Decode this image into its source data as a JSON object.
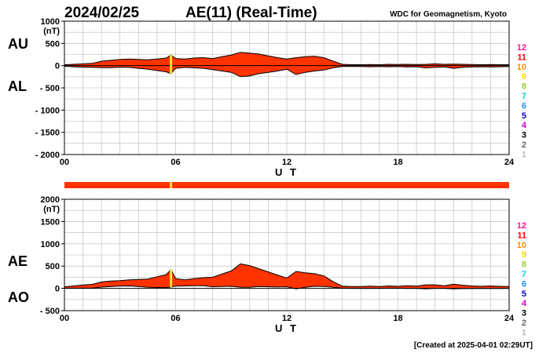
{
  "header": {
    "date": "2024/02/25",
    "title": "AE(11) (Real-Time)",
    "source": "WDC for Geomagnetism, Kyoto"
  },
  "footer": {
    "created": "[Created at 2025-04-01 02:29UT]"
  },
  "colors": {
    "fill": "#ff3300",
    "highlight": "#f2e23a",
    "band": "#ff3300",
    "grid": "#b8b8b8"
  },
  "color_scale": [
    {
      "label": "12",
      "color": "#ff1493"
    },
    {
      "label": "11",
      "color": "#ff0000"
    },
    {
      "label": "10",
      "color": "#ff8c00"
    },
    {
      "label": "9",
      "color": "#ffd700"
    },
    {
      "label": "8",
      "color": "#9acd32"
    },
    {
      "label": "7",
      "color": "#00ced1"
    },
    {
      "label": "6",
      "color": "#1e90ff"
    },
    {
      "label": "5",
      "color": "#0000cd"
    },
    {
      "label": "4",
      "color": "#cc00cc"
    },
    {
      "label": "3",
      "color": "#000000"
    },
    {
      "label": "2",
      "color": "#666666"
    },
    {
      "label": "1",
      "color": "#bbbbbb"
    }
  ],
  "chart_data": [
    {
      "type": "area",
      "panel": "top",
      "series_labels": [
        "AU",
        "AL"
      ],
      "unit": "(nT)",
      "ylim": [
        -2000,
        1000
      ],
      "yticks": [
        1000,
        500,
        0,
        -500,
        -1000,
        -1500,
        -2000
      ],
      "ytick_labels": [
        "1000",
        "500",
        "0",
        "- 500",
        "- 1000",
        "- 1500",
        "- 2000"
      ],
      "xlim": [
        0,
        24
      ],
      "xticks": [
        "00",
        "06",
        "12",
        "18",
        "24"
      ],
      "xlabel": "U T",
      "grid": true,
      "highlight_hour": 5.75,
      "x": [
        0,
        0.5,
        1,
        1.5,
        2,
        2.5,
        3,
        3.5,
        4,
        4.5,
        5,
        5.5,
        5.75,
        6,
        6.5,
        7,
        7.5,
        8,
        8.5,
        9,
        9.5,
        10,
        10.5,
        11,
        11.5,
        12,
        12.5,
        13,
        13.5,
        14,
        14.5,
        15,
        15.5,
        16,
        16.5,
        17,
        17.5,
        18,
        18.5,
        19,
        19.5,
        20,
        20.5,
        21,
        21.5,
        22,
        22.5,
        23,
        23.5,
        24
      ],
      "series": [
        {
          "name": "AU",
          "values": [
            20,
            30,
            40,
            50,
            100,
            120,
            140,
            150,
            140,
            130,
            150,
            170,
            240,
            160,
            150,
            170,
            180,
            160,
            200,
            240,
            300,
            280,
            260,
            220,
            180,
            150,
            180,
            200,
            210,
            180,
            100,
            30,
            20,
            20,
            25,
            20,
            30,
            25,
            30,
            25,
            30,
            40,
            30,
            35,
            30,
            25,
            20,
            25,
            20,
            20
          ]
        },
        {
          "name": "AL",
          "values": [
            -15,
            -25,
            -35,
            -40,
            -45,
            -45,
            -35,
            -40,
            -60,
            -80,
            -110,
            -140,
            -180,
            -60,
            -40,
            -50,
            -60,
            -90,
            -120,
            -150,
            -250,
            -230,
            -180,
            -150,
            -120,
            -80,
            -200,
            -150,
            -120,
            -100,
            -50,
            -20,
            -20,
            -20,
            -25,
            -20,
            -25,
            -20,
            -30,
            -25,
            -50,
            -40,
            -30,
            -60,
            -40,
            -30,
            -25,
            -30,
            -25,
            -20
          ]
        }
      ]
    },
    {
      "type": "area",
      "panel": "bottom",
      "series_labels": [
        "AE",
        "AO"
      ],
      "unit": "(nT)",
      "ylim": [
        -500,
        2000
      ],
      "yticks": [
        2000,
        1500,
        1000,
        500,
        0,
        -500
      ],
      "ytick_labels": [
        "2000",
        "1500",
        "1000",
        "500",
        "0",
        "- 500"
      ],
      "xlim": [
        0,
        24
      ],
      "xticks": [
        "00",
        "06",
        "12",
        "18",
        "24"
      ],
      "xlabel": "U T",
      "grid": true,
      "highlight_hour": 5.75,
      "x": [
        0,
        0.5,
        1,
        1.5,
        2,
        2.5,
        3,
        3.5,
        4,
        4.5,
        5,
        5.5,
        5.75,
        6,
        6.5,
        7,
        7.5,
        8,
        8.5,
        9,
        9.5,
        10,
        10.5,
        11,
        11.5,
        12,
        12.5,
        13,
        13.5,
        14,
        14.5,
        15,
        15.5,
        16,
        16.5,
        17,
        17.5,
        18,
        18.5,
        19,
        19.5,
        20,
        20.5,
        21,
        21.5,
        22,
        22.5,
        23,
        23.5,
        24
      ],
      "series": [
        {
          "name": "AE",
          "values": [
            35,
            55,
            75,
            90,
            145,
            165,
            175,
            190,
            200,
            210,
            260,
            310,
            420,
            220,
            190,
            220,
            240,
            250,
            320,
            390,
            550,
            510,
            440,
            370,
            300,
            230,
            380,
            350,
            330,
            280,
            150,
            50,
            40,
            40,
            50,
            40,
            55,
            45,
            60,
            50,
            80,
            80,
            60,
            95,
            70,
            55,
            45,
            55,
            45,
            40
          ]
        },
        {
          "name": "AO",
          "values": [
            2,
            3,
            3,
            5,
            28,
            38,
            53,
            55,
            40,
            25,
            20,
            15,
            30,
            50,
            55,
            60,
            60,
            35,
            40,
            45,
            25,
            25,
            40,
            35,
            30,
            35,
            -10,
            25,
            45,
            40,
            25,
            5,
            0,
            0,
            0,
            0,
            3,
            3,
            0,
            0,
            -10,
            0,
            0,
            -13,
            -5,
            -3,
            -3,
            -3,
            -3,
            0
          ]
        }
      ]
    }
  ]
}
